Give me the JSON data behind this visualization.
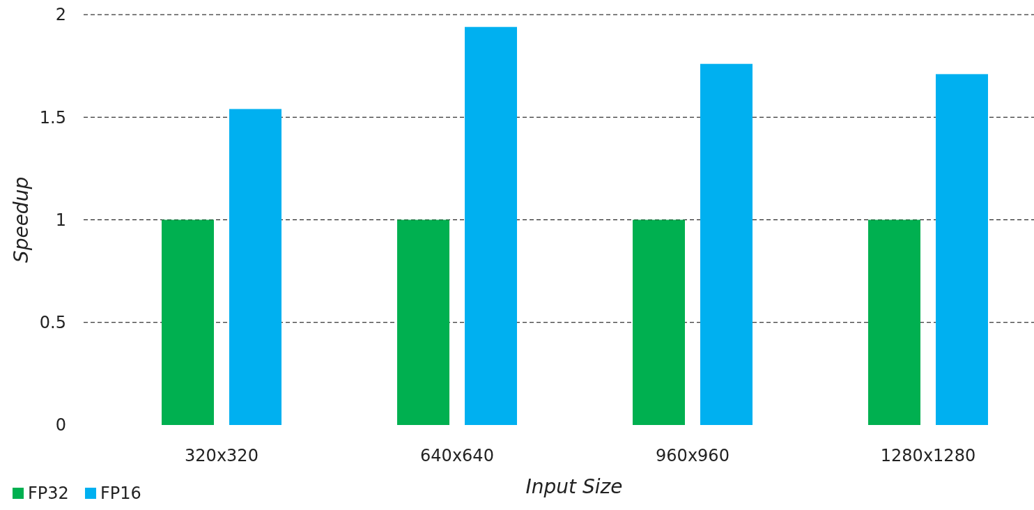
{
  "chart_data": {
    "type": "bar",
    "xlabel": "Input Size",
    "ylabel": "Speedup",
    "categories": [
      "320x320",
      "640x640",
      "960x960",
      "1280x1280"
    ],
    "series": [
      {
        "name": "FP32",
        "color": "#00b050",
        "values": [
          1,
          1,
          1,
          1
        ]
      },
      {
        "name": "FP16",
        "color": "#00b0f0",
        "values": [
          1.54,
          1.94,
          1.76,
          1.71
        ]
      }
    ],
    "ylim": [
      0,
      2
    ],
    "yticks": [
      0,
      0.5,
      1,
      1.5,
      2
    ],
    "grid": "y",
    "legend": "bottom left"
  }
}
